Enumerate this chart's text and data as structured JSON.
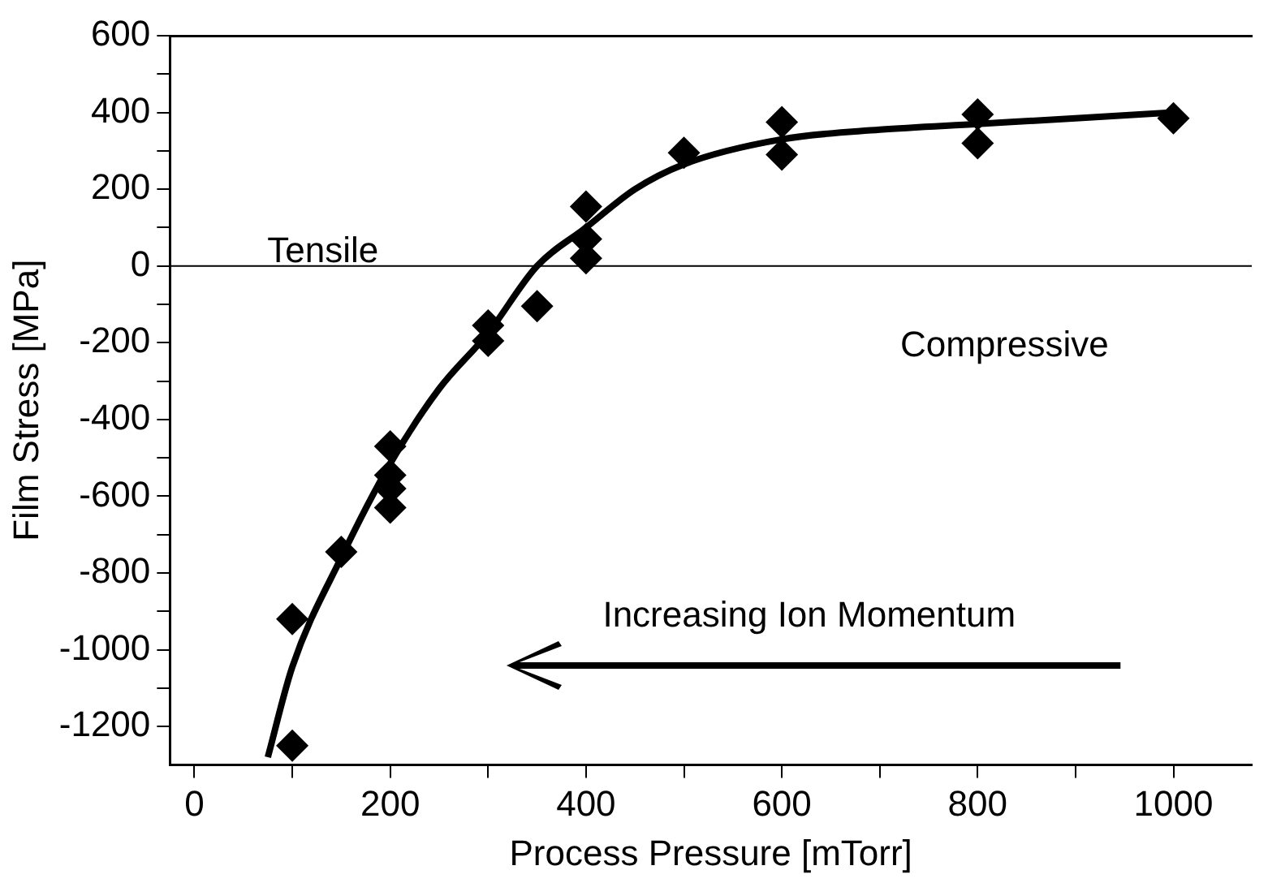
{
  "chart_data": {
    "type": "scatter",
    "xlabel": "Process Pressure [mTorr]",
    "ylabel": "Film Stress [MPa]",
    "xlim": [
      -25,
      1080
    ],
    "ylim": [
      -1300,
      600
    ],
    "xticks": [
      0,
      {
        "value": 100,
        "label": null
      },
      200,
      {
        "value": 300,
        "label": null
      },
      400,
      {
        "value": 500,
        "label": null
      },
      600,
      {
        "value": 700,
        "label": null
      },
      800,
      {
        "value": 900,
        "label": null
      },
      1000
    ],
    "yticks": [
      -1200,
      {
        "value": -1100,
        "label": null
      },
      -1000,
      {
        "value": -900,
        "label": null
      },
      -800,
      {
        "value": -700,
        "label": null
      },
      -600,
      {
        "value": -500,
        "label": null
      },
      -400,
      {
        "value": -300,
        "label": null
      },
      -200,
      {
        "value": -100,
        "label": null
      },
      0,
      {
        "value": 100,
        "label": null
      },
      200,
      {
        "value": 300,
        "label": null
      },
      400,
      {
        "value": 500,
        "label": null
      },
      600
    ],
    "grid": false,
    "legend": false,
    "marker": "diamond",
    "ref_lines": [
      {
        "axis": "y",
        "value": 0,
        "color": "#000000"
      }
    ],
    "annotations": [
      "Tensile",
      "Compressive",
      "Increasing Ion Momentum"
    ],
    "series": [
      {
        "color": "#000000",
        "x": [
          100,
          100,
          150,
          200,
          200,
          200,
          200,
          300,
          300,
          350,
          400,
          400,
          400,
          500,
          600,
          600,
          800,
          800,
          1000
        ],
        "values": [
          -920,
          -1250,
          -745,
          -470,
          -545,
          -580,
          -630,
          -155,
          -195,
          -105,
          155,
          70,
          20,
          295,
          375,
          290,
          395,
          320,
          385
        ]
      },
      {
        "type": "line",
        "color": "#000000",
        "marker": "none",
        "line_style": "solid",
        "x": [
          75,
          100,
          150,
          200,
          250,
          300,
          350,
          400,
          450,
          500,
          600,
          700,
          800,
          900,
          1000
        ],
        "values": [
          -1280,
          -1045,
          -760,
          -515,
          -320,
          -175,
          0,
          100,
          200,
          265,
          330,
          355,
          370,
          385,
          400
        ]
      }
    ]
  }
}
